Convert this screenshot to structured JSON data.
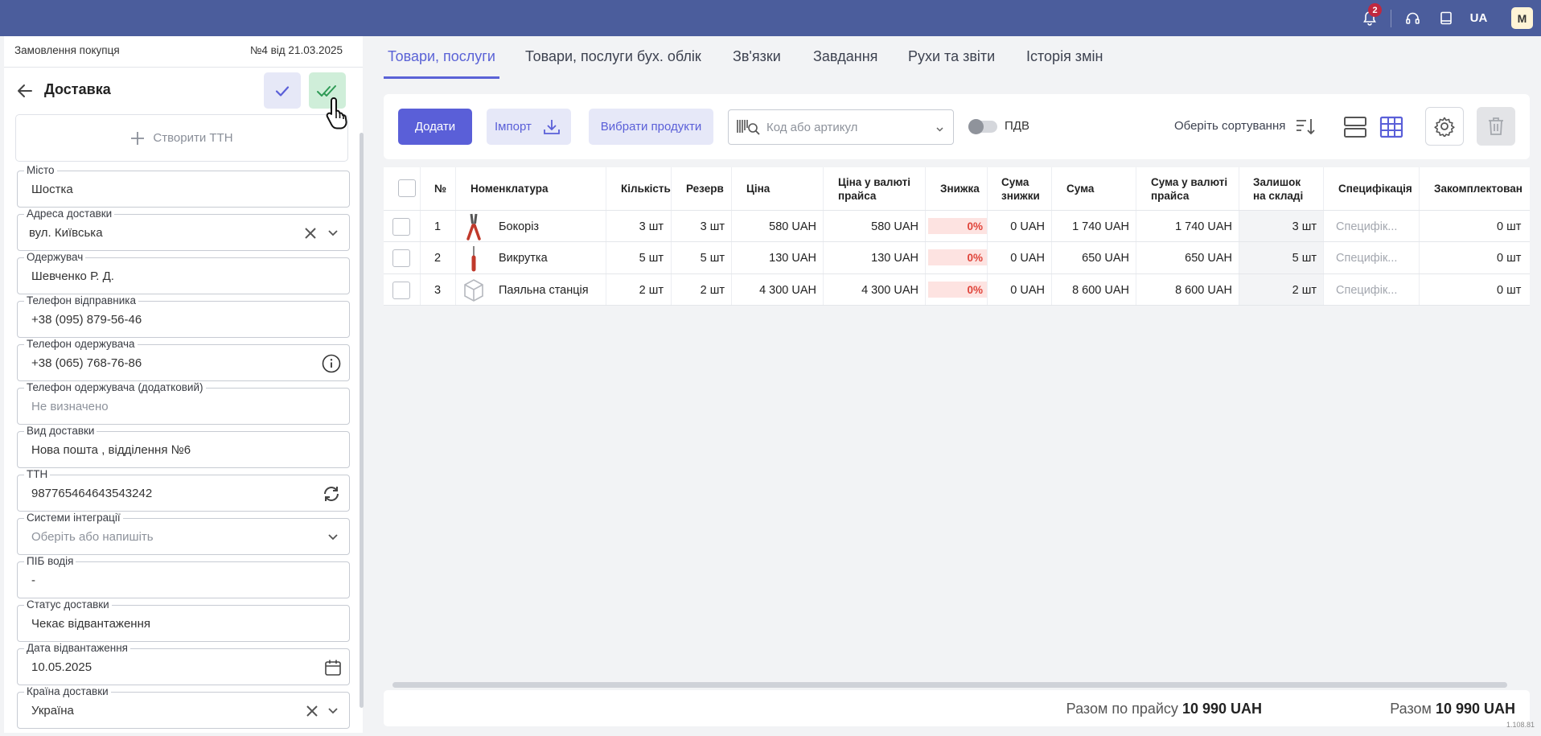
{
  "topbar": {
    "notifications_count": "2",
    "language": "UA",
    "user_initial": "M",
    "icons": [
      "bell-icon",
      "headset-icon",
      "book-icon"
    ]
  },
  "order": {
    "type": "Замовлення покупця",
    "number": "№4 від 21.03.2025"
  },
  "section": {
    "title": "Доставка",
    "create_ttn": "Створити ТТН"
  },
  "fields": {
    "city": {
      "label": "Місто",
      "value": "Шостка"
    },
    "address": {
      "label": "Адреса доставки",
      "value": "вул. Київська"
    },
    "recipient": {
      "label": "Одержувач",
      "value": "Шевченко Р. Д."
    },
    "sender_phone": {
      "label": "Телефон відправника",
      "value": "+38 (095) 879-56-46"
    },
    "recipient_phone": {
      "label": "Телефон одержувача",
      "value": "+38 (065) 768-76-86"
    },
    "recipient_phone_extra": {
      "label": "Телефон одержувача (додатковий)",
      "value": "Не визначено"
    },
    "delivery_type": {
      "label": "Вид доставки",
      "value": "Нова пошта , відділення №6"
    },
    "ttn": {
      "label": "ТТН",
      "value": "987765464643543242"
    },
    "integration": {
      "label": "Системи інтеграції",
      "placeholder": "Оберіть або напишіть"
    },
    "driver": {
      "label": "ПІБ водія",
      "value": "-"
    },
    "status": {
      "label": "Статус доставки",
      "value": "Чекає відвантаження"
    },
    "ship_date": {
      "label": "Дата відвантаження",
      "value": "10.05.2025"
    },
    "country": {
      "label": "Країна доставки",
      "value": "Україна"
    }
  },
  "tabs": [
    "Товари, послуги",
    "Товари, послуги бух. облік",
    "Зв'язки",
    "Завдання",
    "Рухи та звіти",
    "Історія змін"
  ],
  "toolbar": {
    "add": "Додати",
    "import": "Імпорт",
    "select_products": "Вибрати продукти",
    "search_placeholder": "Код або артикул",
    "vat_label": "ПДВ",
    "sort_label": "Оберіть сортування"
  },
  "table": {
    "headers": {
      "num": "№",
      "item": "Номенклатура",
      "qty": "Кількість",
      "reserve": "Резерв",
      "price": "Ціна",
      "price_cur_1": "Ціна у валюті",
      "price_cur_2": "прайса",
      "discount": "Знижка",
      "disc_sum_1": "Сума",
      "disc_sum_2": "знижки",
      "sum": "Сума",
      "sum_cur_1": "Сума у валюті",
      "sum_cur_2": "прайса",
      "stock_1": "Залишок",
      "stock_2": "на складі",
      "spec": "Специфікація",
      "complete": "Закомплектован"
    },
    "rows": [
      {
        "n": "1",
        "name": "Бокоріз",
        "icon": "pliers-icon",
        "qty": "3  шт",
        "reserve": "3  шт",
        "price": "580  UAH",
        "price_cur": "580  UAH",
        "discount": "0%",
        "disc_sum": "0  UAH",
        "sum": "1 740  UAH",
        "sum_cur": "1 740  UAH",
        "stock": "3  шт",
        "spec": "Специфік...",
        "complete": "0  шт"
      },
      {
        "n": "2",
        "name": "Викрутка",
        "icon": "screwdriver-icon",
        "qty": "5  шт",
        "reserve": "5  шт",
        "price": "130  UAH",
        "price_cur": "130  UAH",
        "discount": "0%",
        "disc_sum": "0  UAH",
        "sum": "650  UAH",
        "sum_cur": "650  UAH",
        "stock": "5  шт",
        "spec": "Специфік...",
        "complete": "0  шт"
      },
      {
        "n": "3",
        "name": "Паяльна станція",
        "icon": "box-icon",
        "qty": "2  шт",
        "reserve": "2  шт",
        "price": "4 300  UAH",
        "price_cur": "4 300  UAH",
        "discount": "0%",
        "disc_sum": "0  UAH",
        "sum": "8 600  UAH",
        "sum_cur": "8 600  UAH",
        "stock": "2  шт",
        "spec": "Специфік...",
        "complete": "0  шт"
      }
    ]
  },
  "footer": {
    "total_price_label": "Разом по прайсу",
    "total_price_value": "10 990 UAH",
    "total_label": "Разом",
    "total_value": "10 990 UAH",
    "version": "1.108.81"
  },
  "colors": {
    "topbar": "#4b5d9c",
    "accent": "#5a5fd8",
    "discount_text": "#e0443a",
    "discount_bg": "#fde3e1"
  }
}
